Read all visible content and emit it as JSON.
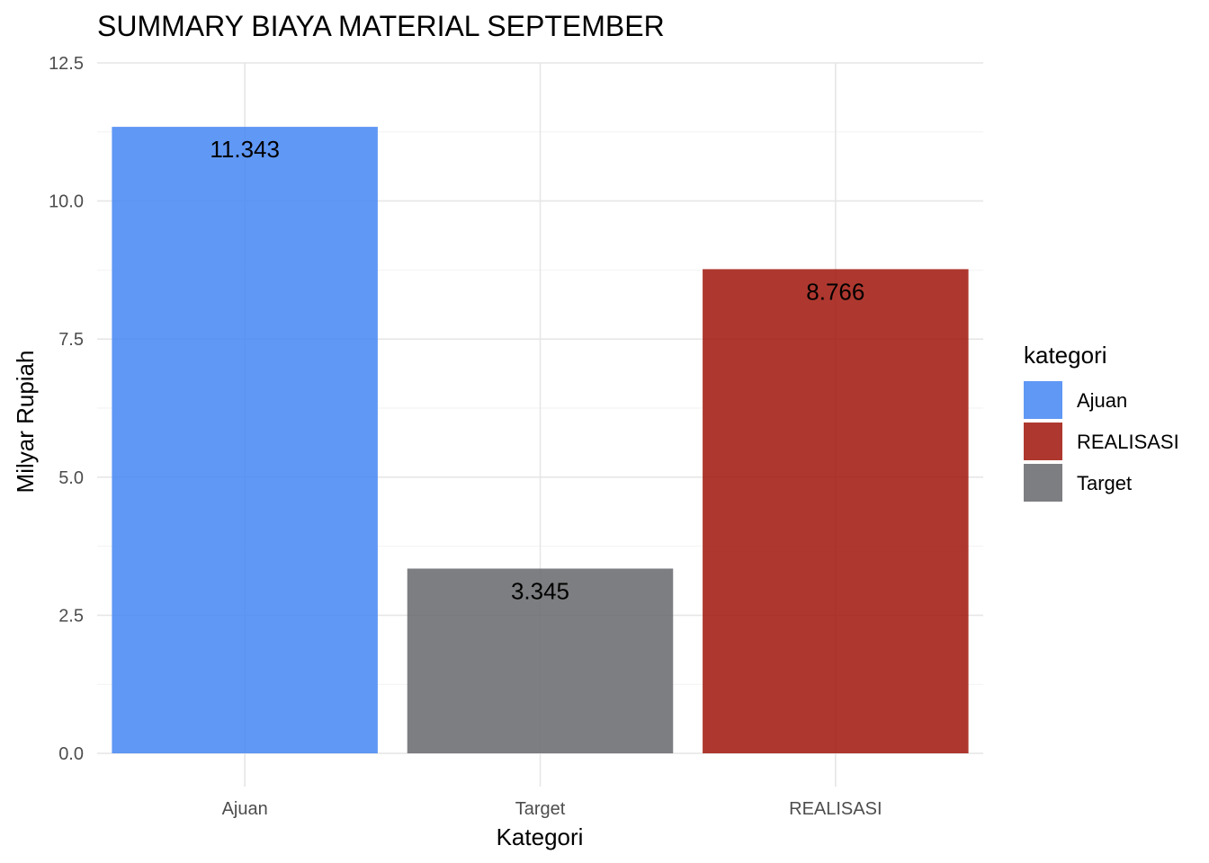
{
  "chart_data": {
    "type": "bar",
    "title": "SUMMARY BIAYA MATERIAL SEPTEMBER",
    "xlabel": "Kategori",
    "ylabel": "Milyar Rupiah",
    "categories": [
      "Ajuan",
      "Target",
      "REALISASI"
    ],
    "values": [
      11.343,
      3.345,
      8.766
    ],
    "data_labels": [
      "11.343",
      "3.345",
      "8.766"
    ],
    "bar_colors": [
      "#4a8af4",
      "#6b6c70",
      "#a31c12"
    ],
    "ylim": [
      0,
      12.5
    ],
    "yticks": [
      0.0,
      2.5,
      5.0,
      7.5,
      10.0,
      12.5
    ],
    "ytick_labels": [
      "0.0",
      "2.5",
      "5.0",
      "7.5",
      "10.0",
      "12.5"
    ],
    "grid": true,
    "legend": {
      "title": "kategori",
      "placement": "right",
      "entries": [
        {
          "label": "Ajuan",
          "color": "#4a8af4"
        },
        {
          "label": "REALISASI",
          "color": "#a31c12"
        },
        {
          "label": "Target",
          "color": "#6b6c70"
        }
      ]
    }
  }
}
